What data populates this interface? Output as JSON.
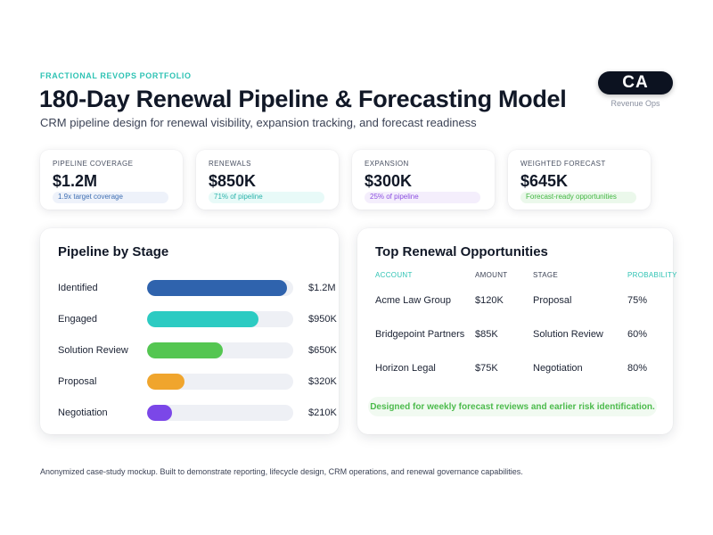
{
  "header": {
    "eyebrow": "FRACTIONAL REVOPS PORTFOLIO",
    "title": "180-Day Renewal Pipeline & Forecasting Model",
    "subtitle": "CRM pipeline design for renewal visibility, expansion tracking, and forecast readiness",
    "badge": "CA",
    "badge_caption": "Revenue Ops"
  },
  "kpis": [
    {
      "label": "PIPELINE COVERAGE",
      "value": "$1.2M",
      "note": "1.9x target coverage",
      "note_color": "#3f6fb3",
      "note_bg": "#eef2fa"
    },
    {
      "label": "RENEWALS",
      "value": "$850K",
      "note": "71% of pipeline",
      "note_color": "#2bb3ab",
      "note_bg": "#e8faf8"
    },
    {
      "label": "EXPANSION",
      "value": "$300K",
      "note": "25% of pipeline",
      "note_color": "#8b4fe0",
      "note_bg": "#f4eefc"
    },
    {
      "label": "WEIGHTED FORECAST",
      "value": "$645K",
      "note": "Forecast-ready opportunities",
      "note_color": "#42b742",
      "note_bg": "#ebf8eb"
    }
  ],
  "stages": {
    "title": "Pipeline by Stage",
    "max": 1200,
    "items": [
      {
        "label": "Identified",
        "value": "$1.2M",
        "amount": 1200,
        "color": "#2f63ad"
      },
      {
        "label": "Engaged",
        "value": "$950K",
        "amount": 950,
        "color": "#2ccbc2"
      },
      {
        "label": "Solution Review",
        "value": "$650K",
        "amount": 650,
        "color": "#54c651"
      },
      {
        "label": "Proposal",
        "value": "$320K",
        "amount": 320,
        "color": "#f0a52d"
      },
      {
        "label": "Negotiation",
        "value": "$210K",
        "amount": 210,
        "color": "#7b47e8"
      }
    ]
  },
  "opportunities": {
    "title": "Top Renewal Opportunities",
    "header_color": "#2fc3b4",
    "columns": [
      "ACCOUNT",
      "AMOUNT",
      "STAGE",
      "PROBABILITY"
    ],
    "rows": [
      [
        "Acme Law Group",
        "$120K",
        "Proposal",
        "75%"
      ],
      [
        "Bridgepoint Partners",
        "$85K",
        "Solution Review",
        "60%"
      ],
      [
        "Horizon Legal",
        "$75K",
        "Negotiation",
        "80%"
      ]
    ],
    "note": "Designed for weekly forecast reviews and earlier risk identification."
  },
  "footer": "Anonymized case-study mockup. Built to demonstrate reporting, lifecycle design, CRM operations, and renewal governance capabilities."
}
